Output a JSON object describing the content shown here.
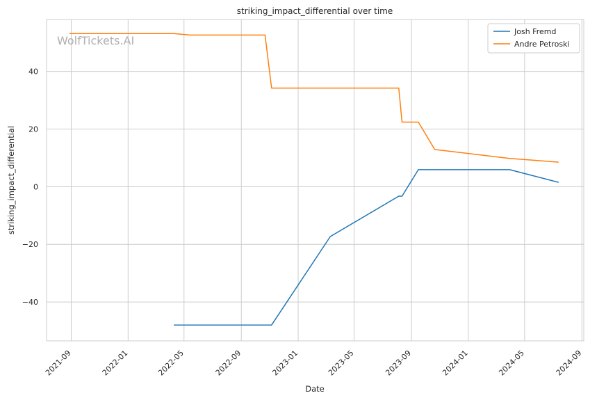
{
  "chart_data": {
    "type": "line",
    "title": "striking_impact_differential over time",
    "xlabel": "Date",
    "ylabel": "striking_impact_differential",
    "watermark": "WolfTickets.AI",
    "x_ticks": [
      "2021-09",
      "2022-01",
      "2022-05",
      "2022-09",
      "2023-01",
      "2023-05",
      "2023-09",
      "2024-01",
      "2024-05",
      "2024-09"
    ],
    "y_ticks": [
      -40,
      -20,
      0,
      20,
      40
    ],
    "xlim": [
      "2021-07-10",
      "2024-09-05"
    ],
    "ylim": [
      -53.5,
      58
    ],
    "grid": true,
    "legend_position": "top-right",
    "series": [
      {
        "name": "Josh Fremd",
        "color": "#1f77b4",
        "points": [
          {
            "x": "2022-04-09",
            "y": -48
          },
          {
            "x": "2022-11-05",
            "y": -48
          },
          {
            "x": "2023-03-11",
            "y": -17.3
          },
          {
            "x": "2023-08-05",
            "y": -3.3
          },
          {
            "x": "2023-08-12",
            "y": -3.3
          },
          {
            "x": "2023-09-16",
            "y": 5.9
          },
          {
            "x": "2024-03-30",
            "y": 5.9
          },
          {
            "x": "2024-07-13",
            "y": 1.5
          }
        ]
      },
      {
        "name": "Andre Petroski",
        "color": "#ff7f0e",
        "points": [
          {
            "x": "2021-08-28",
            "y": 53.1
          },
          {
            "x": "2022-04-09",
            "y": 53.1
          },
          {
            "x": "2022-05-14",
            "y": 52.6
          },
          {
            "x": "2022-10-22",
            "y": 52.6
          },
          {
            "x": "2022-11-05",
            "y": 34.2
          },
          {
            "x": "2023-08-05",
            "y": 34.2
          },
          {
            "x": "2023-08-12",
            "y": 22.4
          },
          {
            "x": "2023-09-16",
            "y": 22.4
          },
          {
            "x": "2023-10-21",
            "y": 12.9
          },
          {
            "x": "2024-03-30",
            "y": 9.8
          },
          {
            "x": "2024-07-13",
            "y": 8.5
          }
        ]
      }
    ]
  }
}
